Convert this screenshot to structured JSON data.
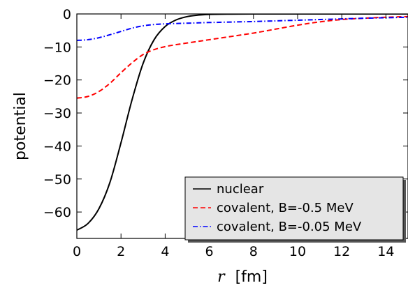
{
  "chart_data": {
    "type": "line",
    "title": "",
    "xlabel_var": "r",
    "xlabel_unit": "[fm]",
    "ylabel": "potential",
    "xlim": [
      0,
      15
    ],
    "ylim": [
      -68,
      0
    ],
    "xticks": [
      0,
      2,
      4,
      6,
      8,
      10,
      12,
      14
    ],
    "yticks": [
      0,
      -10,
      -20,
      -30,
      -40,
      -50,
      -60
    ],
    "grid": false,
    "legend_position": "lower-right",
    "x": [
      0,
      0.5,
      1,
      1.5,
      2,
      2.5,
      3,
      3.5,
      4,
      4.5,
      5,
      5.5,
      6,
      7,
      8,
      9,
      10,
      11,
      12,
      13,
      14,
      15
    ],
    "series": [
      {
        "name": "nuclear",
        "color": "#000000",
        "dash": "solid",
        "values": [
          -65.5,
          -63.5,
          -59,
          -51,
          -39,
          -26,
          -15,
          -7.8,
          -3.8,
          -1.8,
          -0.8,
          -0.35,
          -0.15,
          -0.05,
          0,
          0,
          0,
          0,
          0,
          0,
          0,
          0
        ]
      },
      {
        "name": "covalent, B=-0.5 MeV",
        "color": "#ff0000",
        "dash": "dashed",
        "values": [
          -25.5,
          -25,
          -23.5,
          -21,
          -17.8,
          -14.8,
          -12.3,
          -10.8,
          -9.9,
          -9.3,
          -8.8,
          -8.3,
          -7.8,
          -6.8,
          -5.8,
          -4.6,
          -3.4,
          -2.4,
          -1.7,
          -1.3,
          -1.0,
          -0.8
        ]
      },
      {
        "name": "covalent, B=-0.05 MeV",
        "color": "#0000ff",
        "dash": "dashdot",
        "values": [
          -8.0,
          -7.8,
          -7.2,
          -6.3,
          -5.3,
          -4.3,
          -3.6,
          -3.2,
          -3.0,
          -2.9,
          -2.8,
          -2.7,
          -2.6,
          -2.45,
          -2.3,
          -2.1,
          -1.9,
          -1.7,
          -1.5,
          -1.3,
          -1.15,
          -1.0
        ]
      }
    ]
  }
}
